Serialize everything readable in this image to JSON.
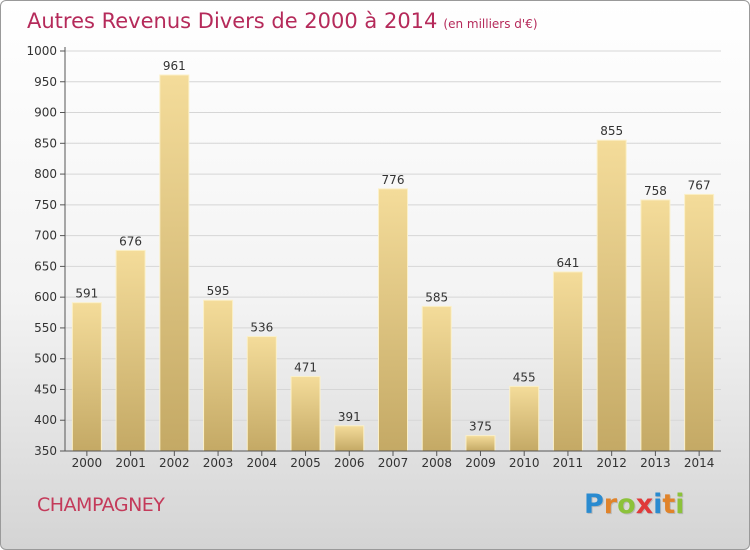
{
  "title": "Autres Revenus Divers de 2000 à 2014",
  "subtitle": "(en milliers d'€)",
  "place": "CHAMPAGNEY",
  "logo": {
    "text": "Proxiti",
    "letter_colors": [
      "#2a8bd0",
      "#e0832a",
      "#8cc23a",
      "#e03a3a",
      "#2a8bd0",
      "#e0832a",
      "#8cc23a"
    ]
  },
  "colors": {
    "title": "#b52a5a",
    "bar_top": "#f4dc9a",
    "bar_bottom": "#c4a965",
    "grid": "#d6d6d6",
    "axis": "#555555",
    "label": "#333333"
  },
  "chart_data": {
    "type": "bar",
    "title": "Autres Revenus Divers de 2000 à 2014",
    "subtitle": "(en milliers d'€)",
    "categories": [
      "2000",
      "2001",
      "2002",
      "2003",
      "2004",
      "2005",
      "2006",
      "2007",
      "2008",
      "2009",
      "2010",
      "2011",
      "2012",
      "2013",
      "2014"
    ],
    "values": [
      591,
      676,
      961,
      595,
      536,
      471,
      391,
      776,
      585,
      375,
      455,
      641,
      855,
      758,
      767
    ],
    "ylim": [
      350,
      1000
    ],
    "yticks": [
      350,
      400,
      450,
      500,
      550,
      600,
      650,
      700,
      750,
      800,
      850,
      900,
      950,
      1000
    ],
    "xlabel": "",
    "ylabel": "",
    "grid": true,
    "data_labels": true
  }
}
